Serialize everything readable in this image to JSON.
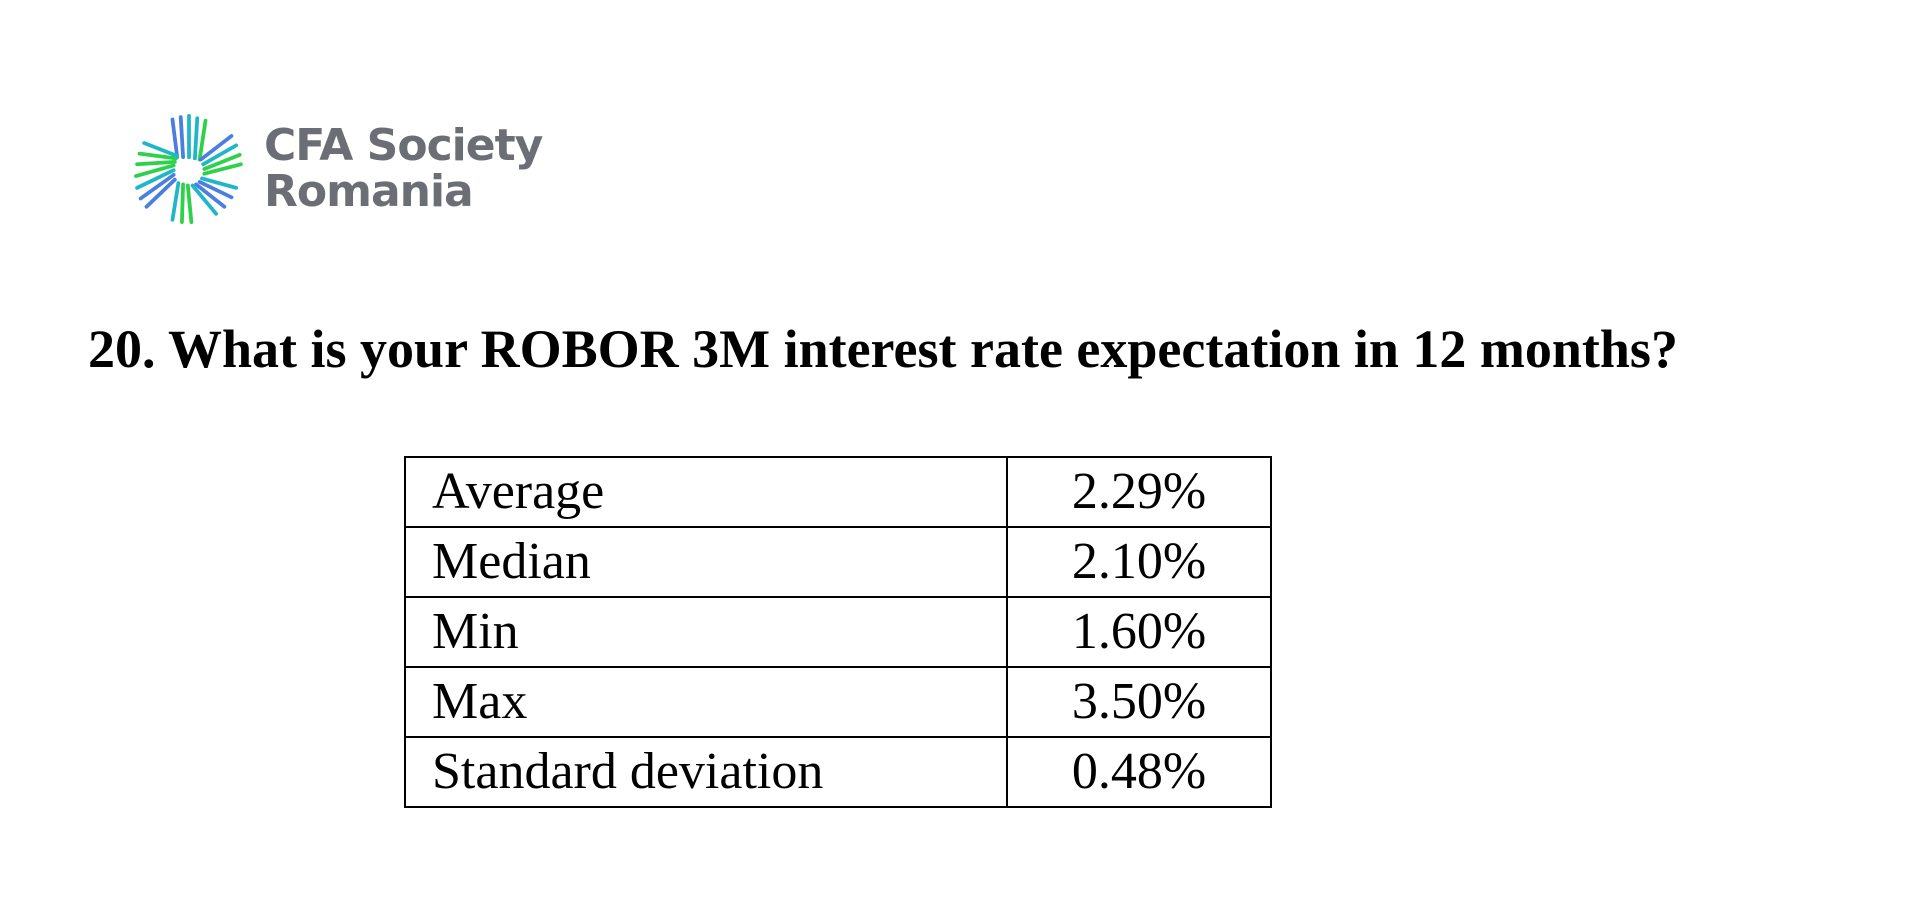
{
  "logo": {
    "line1": "CFA Society",
    "line2": "Romania",
    "colors": {
      "blue": "#4a7fe0",
      "teal": "#1fb7c7",
      "green": "#2ed14a",
      "text": "#6b6f75"
    }
  },
  "question": "20. What is your ROBOR 3M interest rate expectation in 12 months?",
  "table": {
    "rows": [
      {
        "label": "Average",
        "value": "2.29%"
      },
      {
        "label": "Median",
        "value": "2.10%"
      },
      {
        "label": "Min",
        "value": "1.60%"
      },
      {
        "label": "Max",
        "value": "3.50%"
      },
      {
        "label": "Standard deviation",
        "value": "0.48%"
      }
    ]
  }
}
